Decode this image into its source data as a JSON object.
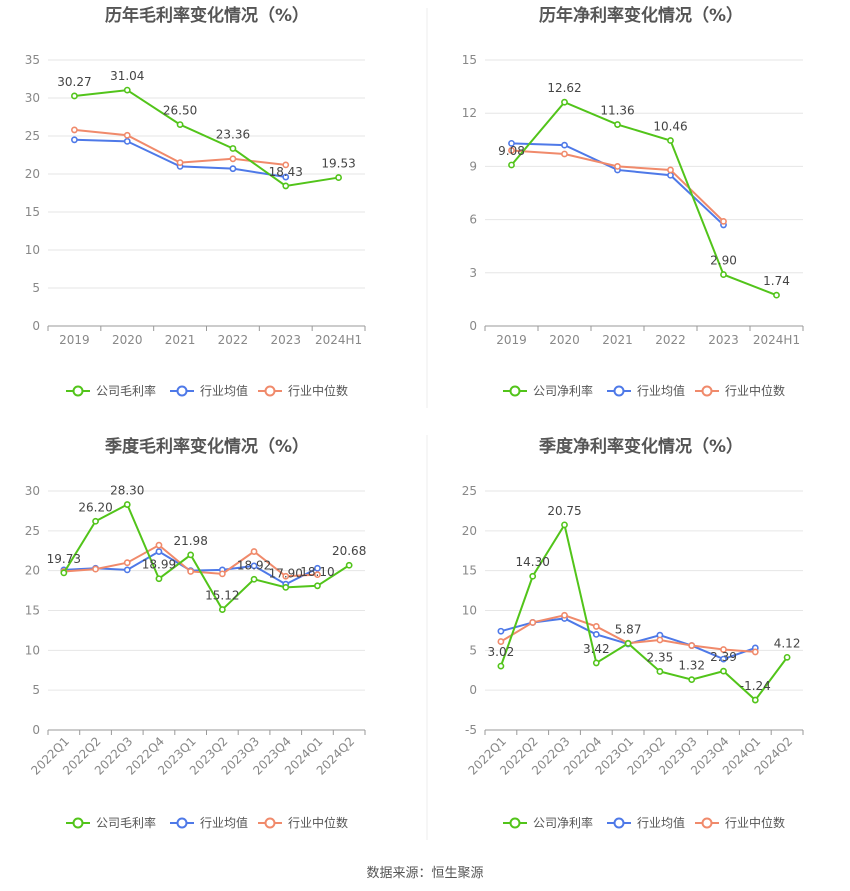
{
  "colors": {
    "company": "#52c41a",
    "industry_avg": "#4e79e8",
    "industry_median": "#f08a6b",
    "grid": "#e6e6e6",
    "axis": "#999999",
    "tick": "#888888",
    "title": "#555555"
  },
  "legend": {
    "company_gross": "公司毛利率",
    "company_net": "公司净利率",
    "industry_avg": "行业均值",
    "industry_median": "行业中位数"
  },
  "source": "数据来源：恒生聚源",
  "chart_data": [
    {
      "type": "line",
      "title": "历年毛利率变化情况（%）",
      "categories": [
        "2019",
        "2020",
        "2021",
        "2022",
        "2023",
        "2024H1"
      ],
      "ylim": [
        0,
        35
      ],
      "yticks": [
        0,
        5,
        10,
        15,
        20,
        25,
        30,
        35
      ],
      "grid": true,
      "legend_position": "bottom",
      "series": [
        {
          "name": "公司毛利率",
          "values": [
            30.27,
            31.04,
            26.5,
            23.36,
            18.43,
            19.53
          ],
          "labels": [
            "30.27",
            "31.04",
            "26.50",
            "23.36",
            "18.43",
            "19.53"
          ]
        },
        {
          "name": "行业均值",
          "values": [
            24.5,
            24.3,
            21.0,
            20.7,
            19.6,
            null
          ]
        },
        {
          "name": "行业中位数",
          "values": [
            25.8,
            25.1,
            21.5,
            22.0,
            21.2,
            null
          ]
        }
      ]
    },
    {
      "type": "line",
      "title": "历年净利率变化情况（%）",
      "categories": [
        "2019",
        "2020",
        "2021",
        "2022",
        "2023",
        "2024H1"
      ],
      "ylim": [
        0,
        15
      ],
      "yticks": [
        0,
        3,
        6,
        9,
        12,
        15
      ],
      "grid": true,
      "legend_position": "bottom",
      "series": [
        {
          "name": "公司净利率",
          "values": [
            9.08,
            12.62,
            11.36,
            10.46,
            2.9,
            1.74
          ],
          "labels": [
            "9.08",
            "12.62",
            "11.36",
            "10.46",
            "2.90",
            "1.74"
          ]
        },
        {
          "name": "行业均值",
          "values": [
            10.3,
            10.2,
            8.8,
            8.5,
            5.7,
            null
          ]
        },
        {
          "name": "行业中位数",
          "values": [
            9.9,
            9.7,
            9.0,
            8.8,
            5.9,
            null
          ]
        }
      ]
    },
    {
      "type": "line",
      "title": "季度毛利率变化情况（%）",
      "categories": [
        "2022Q1",
        "2022Q2",
        "2022Q3",
        "2022Q4",
        "2023Q1",
        "2023Q2",
        "2023Q3",
        "2023Q4",
        "2024Q1",
        "2024Q2"
      ],
      "ylim": [
        0,
        30
      ],
      "yticks": [
        0,
        5,
        10,
        15,
        20,
        25,
        30
      ],
      "grid": true,
      "legend_position": "bottom",
      "rotate_x_labels": true,
      "series": [
        {
          "name": "公司毛利率",
          "values": [
            19.73,
            26.2,
            28.3,
            18.99,
            21.98,
            15.12,
            18.92,
            17.9,
            18.1,
            20.68
          ],
          "labels": [
            "19.73",
            "26.20",
            "28.30",
            "18.99",
            "21.98",
            "15.12",
            "18.92",
            "17.90",
            "18.10",
            "20.68"
          ]
        },
        {
          "name": "行业均值",
          "values": [
            20.1,
            20.3,
            20.1,
            22.4,
            20.0,
            20.1,
            20.6,
            18.3,
            20.3,
            null
          ]
        },
        {
          "name": "行业中位数",
          "values": [
            19.9,
            20.2,
            21.0,
            23.2,
            19.9,
            19.6,
            22.4,
            19.3,
            19.5,
            null
          ]
        }
      ]
    },
    {
      "type": "line",
      "title": "季度净利率变化情况（%）",
      "categories": [
        "2022Q1",
        "2022Q2",
        "2022Q3",
        "2022Q4",
        "2023Q1",
        "2023Q2",
        "2023Q3",
        "2023Q4",
        "2024Q1",
        "2024Q2"
      ],
      "ylim": [
        -5,
        25
      ],
      "yticks": [
        -5,
        0,
        5,
        10,
        15,
        20,
        25
      ],
      "grid": true,
      "legend_position": "bottom",
      "rotate_x_labels": true,
      "series": [
        {
          "name": "公司净利率",
          "values": [
            3.02,
            14.3,
            20.75,
            3.42,
            5.87,
            2.35,
            1.32,
            2.39,
            -1.24,
            4.12
          ],
          "labels": [
            "3.02",
            "14.30",
            "20.75",
            "3.42",
            "5.87",
            "2.35",
            "1.32",
            "2.39",
            "-1.24",
            "4.12"
          ]
        },
        {
          "name": "行业均值",
          "values": [
            7.4,
            8.5,
            9.0,
            7.0,
            5.8,
            6.9,
            5.6,
            3.9,
            5.3,
            null
          ]
        },
        {
          "name": "行业中位数",
          "values": [
            6.1,
            8.5,
            9.4,
            8.0,
            5.9,
            6.3,
            5.6,
            5.1,
            4.8,
            null
          ]
        }
      ]
    }
  ]
}
